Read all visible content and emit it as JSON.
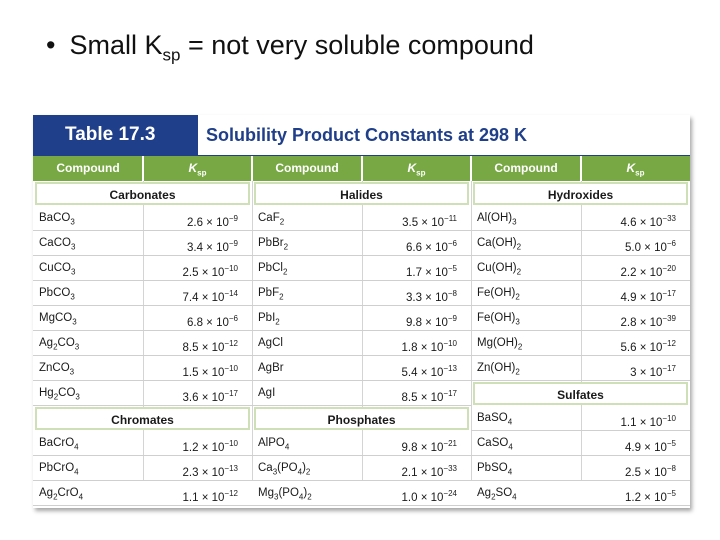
{
  "slide": {
    "bullet_symbol": "•",
    "bullet_prefix": "Small K",
    "bullet_sub": "sp",
    "bullet_suffix": " = not very soluble compound"
  },
  "table": {
    "number": "Table 17.3",
    "title": "Solubility Product Constants at 298 K",
    "header_compound": "Compound",
    "header_k": "K",
    "header_k_sub": "sp",
    "header_color": "#77a843",
    "title_color": "#1f3f8a",
    "columns": [
      {
        "groups": [
          {
            "category": "Carbonates",
            "rows": [
              {
                "f": [
                  [
                    "Ba",
                    ""
                  ],
                  [
                    "CO",
                    "3"
                  ]
                ],
                "m": "2.6",
                "e": "−9"
              },
              {
                "f": [
                  [
                    "Ca",
                    ""
                  ],
                  [
                    "CO",
                    "3"
                  ]
                ],
                "m": "3.4",
                "e": "−9"
              },
              {
                "f": [
                  [
                    "Cu",
                    ""
                  ],
                  [
                    "CO",
                    "3"
                  ]
                ],
                "m": "2.5",
                "e": "−10"
              },
              {
                "f": [
                  [
                    "Pb",
                    ""
                  ],
                  [
                    "CO",
                    "3"
                  ]
                ],
                "m": "7.4",
                "e": "−14"
              },
              {
                "f": [
                  [
                    "Mg",
                    ""
                  ],
                  [
                    "CO",
                    "3"
                  ]
                ],
                "m": "6.8",
                "e": "−6"
              },
              {
                "f": [
                  [
                    "Ag",
                    "2"
                  ],
                  [
                    "CO",
                    "3"
                  ]
                ],
                "m": "8.5",
                "e": "−12"
              },
              {
                "f": [
                  [
                    "Zn",
                    ""
                  ],
                  [
                    "CO",
                    "3"
                  ]
                ],
                "m": "1.5",
                "e": "−10"
              },
              {
                "f": [
                  [
                    "Hg",
                    "2"
                  ],
                  [
                    "CO",
                    "3"
                  ]
                ],
                "m": "3.6",
                "e": "−17"
              }
            ]
          },
          {
            "category": "Chromates",
            "rows": [
              {
                "f": [
                  [
                    "Ba",
                    ""
                  ],
                  [
                    "CrO",
                    "4"
                  ]
                ],
                "m": "1.2",
                "e": "−10"
              },
              {
                "f": [
                  [
                    "Pb",
                    ""
                  ],
                  [
                    "CrO",
                    "4"
                  ]
                ],
                "m": "2.3",
                "e": "−13"
              },
              {
                "f": [
                  [
                    "Ag",
                    "2"
                  ],
                  [
                    "CrO",
                    "4"
                  ]
                ],
                "m": "1.1",
                "e": "−12"
              }
            ]
          }
        ]
      },
      {
        "groups": [
          {
            "category": "Halides",
            "rows": [
              {
                "f": [
                  [
                    "CaF",
                    "2"
                  ]
                ],
                "m": "3.5",
                "e": "−11"
              },
              {
                "f": [
                  [
                    "PbBr",
                    "2"
                  ]
                ],
                "m": "6.6",
                "e": "−6"
              },
              {
                "f": [
                  [
                    "PbCl",
                    "2"
                  ]
                ],
                "m": "1.7",
                "e": "−5"
              },
              {
                "f": [
                  [
                    "PbF",
                    "2"
                  ]
                ],
                "m": "3.3",
                "e": "−8"
              },
              {
                "f": [
                  [
                    "PbI",
                    "2"
                  ]
                ],
                "m": "9.8",
                "e": "−9"
              },
              {
                "f": [
                  [
                    "AgCl",
                    ""
                  ]
                ],
                "m": "1.8",
                "e": "−10"
              },
              {
                "f": [
                  [
                    "AgBr",
                    ""
                  ]
                ],
                "m": "5.4",
                "e": "−13"
              },
              {
                "f": [
                  [
                    "AgI",
                    ""
                  ]
                ],
                "m": "8.5",
                "e": "−17"
              }
            ]
          },
          {
            "category": "Phosphates",
            "rows": [
              {
                "f": [
                  [
                    "AlPO",
                    "4"
                  ]
                ],
                "m": "9.8",
                "e": "−21"
              },
              {
                "f": [
                  [
                    "Ca",
                    "3"
                  ],
                  [
                    "(PO",
                    "4"
                  ],
                  [
                    ")",
                    "2"
                  ]
                ],
                "m": "2.1",
                "e": "−33"
              },
              {
                "f": [
                  [
                    "Mg",
                    "3"
                  ],
                  [
                    "(PO",
                    "4"
                  ],
                  [
                    ")",
                    "2"
                  ]
                ],
                "m": "1.0",
                "e": "−24"
              }
            ]
          }
        ]
      },
      {
        "groups": [
          {
            "category": "Hydroxides",
            "rows": [
              {
                "f": [
                  [
                    "Al(OH)",
                    "3"
                  ]
                ],
                "m": "4.6",
                "e": "−33"
              },
              {
                "f": [
                  [
                    "Ca(OH)",
                    "2"
                  ]
                ],
                "m": "5.0",
                "e": "−6"
              },
              {
                "f": [
                  [
                    "Cu(OH)",
                    "2"
                  ]
                ],
                "m": "2.2",
                "e": "−20"
              },
              {
                "f": [
                  [
                    "Fe(OH)",
                    "2"
                  ]
                ],
                "m": "4.9",
                "e": "−17"
              },
              {
                "f": [
                  [
                    "Fe(OH)",
                    "3"
                  ]
                ],
                "m": "2.8",
                "e": "−39"
              },
              {
                "f": [
                  [
                    "Mg(OH)",
                    "2"
                  ]
                ],
                "m": "5.6",
                "e": "−12"
              },
              {
                "f": [
                  [
                    "Zn(OH)",
                    "2"
                  ]
                ],
                "m": "3",
                "e": "−17"
              }
            ]
          },
          {
            "category": "Sulfates",
            "rows": [
              {
                "f": [
                  [
                    "BaSO",
                    "4"
                  ]
                ],
                "m": "1.1",
                "e": "−10"
              },
              {
                "f": [
                  [
                    "CaSO",
                    "4"
                  ]
                ],
                "m": "4.9",
                "e": "−5"
              },
              {
                "f": [
                  [
                    "PbSO",
                    "4"
                  ]
                ],
                "m": "2.5",
                "e": "−8"
              },
              {
                "f": [
                  [
                    "Ag",
                    "2"
                  ],
                  [
                    "SO",
                    "4"
                  ]
                ],
                "m": "1.2",
                "e": "−5"
              }
            ]
          }
        ]
      }
    ]
  }
}
